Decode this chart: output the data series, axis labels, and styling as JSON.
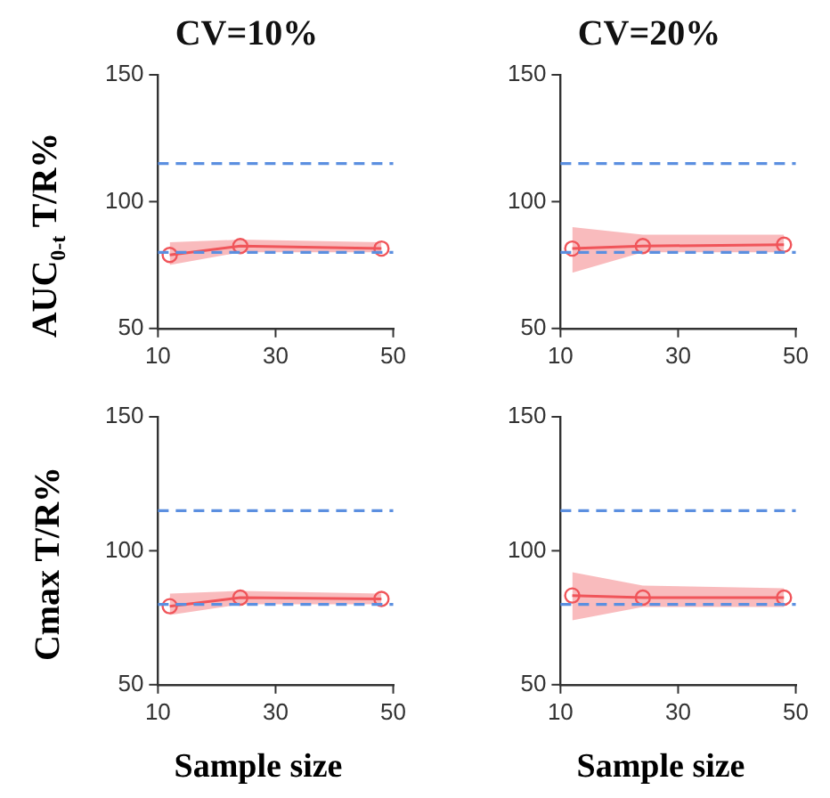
{
  "chart_data": [
    {
      "type": "line",
      "title": "CV=10%",
      "ylabel": "AUC$_{0-t}$ T/R%",
      "x": [
        12,
        24,
        48
      ],
      "xlim": [
        10,
        50
      ],
      "xticks": [
        10,
        30,
        50
      ],
      "ylim": [
        50,
        150
      ],
      "yticks": [
        50,
        100,
        150
      ],
      "grid": false,
      "legend": false,
      "marker": "circle",
      "line_style": "solid",
      "series": [
        {
          "color": "#f0555a",
          "values": [
            79,
            82.5,
            81.5
          ],
          "lower": [
            75,
            80,
            80
          ],
          "upper": [
            84,
            85,
            84
          ]
        }
      ],
      "ref_lines": [
        {
          "axis": "y",
          "value": 80,
          "color": "#5b8fe0",
          "line_style": "dashed"
        },
        {
          "axis": "y",
          "value": 115,
          "color": "#5b8fe0",
          "line_style": "dashed"
        }
      ]
    },
    {
      "type": "line",
      "title": "CV=20%",
      "x": [
        12,
        24,
        48
      ],
      "xlim": [
        10,
        50
      ],
      "xticks": [
        10,
        30,
        50
      ],
      "ylim": [
        50,
        150
      ],
      "yticks": [
        50,
        100,
        150
      ],
      "grid": false,
      "legend": false,
      "marker": "circle",
      "line_style": "solid",
      "series": [
        {
          "color": "#f0555a",
          "values": [
            81.5,
            82.5,
            83
          ],
          "lower": [
            72,
            80,
            80
          ],
          "upper": [
            90,
            87,
            87
          ]
        }
      ],
      "ref_lines": [
        {
          "axis": "y",
          "value": 80,
          "color": "#5b8fe0",
          "line_style": "dashed"
        },
        {
          "axis": "y",
          "value": 115,
          "color": "#5b8fe0",
          "line_style": "dashed"
        }
      ]
    },
    {
      "type": "line",
      "ylabel": "Cmax T/R%",
      "xlabel": "Sample size",
      "x": [
        12,
        24,
        48
      ],
      "xlim": [
        10,
        50
      ],
      "xticks": [
        10,
        30,
        50
      ],
      "ylim": [
        50,
        150
      ],
      "yticks": [
        50,
        100,
        150
      ],
      "grid": false,
      "legend": false,
      "marker": "circle",
      "line_style": "solid",
      "series": [
        {
          "color": "#f0555a",
          "values": [
            79.3,
            82.5,
            82
          ],
          "lower": [
            76,
            80,
            80
          ],
          "upper": [
            84,
            85,
            84
          ]
        }
      ],
      "ref_lines": [
        {
          "axis": "y",
          "value": 80,
          "color": "#5b8fe0",
          "line_style": "dashed"
        },
        {
          "axis": "y",
          "value": 115,
          "color": "#5b8fe0",
          "line_style": "dashed"
        }
      ]
    },
    {
      "type": "line",
      "xlabel": "Sample size",
      "x": [
        12,
        24,
        48
      ],
      "xlim": [
        10,
        50
      ],
      "xticks": [
        10,
        30,
        50
      ],
      "ylim": [
        50,
        150
      ],
      "yticks": [
        50,
        100,
        150
      ],
      "grid": false,
      "legend": false,
      "marker": "circle",
      "line_style": "solid",
      "series": [
        {
          "color": "#f0555a",
          "values": [
            83.3,
            82.5,
            82.5
          ],
          "lower": [
            74,
            79,
            79
          ],
          "upper": [
            92,
            87,
            86
          ]
        }
      ],
      "ref_lines": [
        {
          "axis": "y",
          "value": 80,
          "color": "#5b8fe0",
          "line_style": "dashed"
        },
        {
          "axis": "y",
          "value": 115,
          "color": "#5b8fe0",
          "line_style": "dashed"
        }
      ]
    }
  ]
}
